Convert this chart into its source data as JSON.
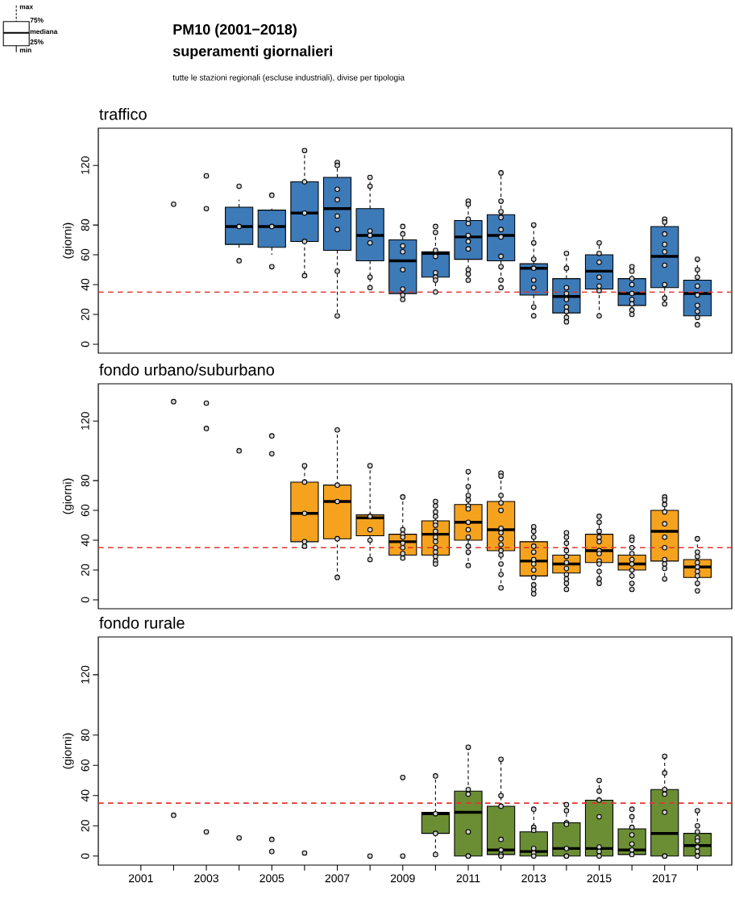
{
  "chart_data": [
    {
      "type": "box",
      "title": "traffico",
      "ylabel": "(giorni)",
      "annotations": [
        "PM10 (2001−2018)",
        "superamenti giornalieri",
        "tutte le stazioni regionali (escluse industriali), divise per tipologia",
        "max",
        "75%",
        "mediana",
        "25%",
        "min"
      ],
      "xlim": [
        1999.7,
        2019.05
      ],
      "ylim": [
        -6,
        145
      ],
      "tick_labels": "y",
      "yticks": [
        0,
        20,
        40,
        60,
        80,
        120
      ],
      "ref_lines": [
        {
          "axis": "y",
          "value": 35,
          "color": "#e3342f",
          "line_style": "dashed"
        }
      ],
      "series": [
        {
          "type": "box",
          "color": "#3d7ab8",
          "x": [
            2004,
            2005,
            2006,
            2007,
            2008,
            2009,
            2010,
            2011,
            2012,
            2013,
            2014,
            2015,
            2016,
            2017,
            2018
          ],
          "boxes": [
            {
              "low": 63,
              "q1": 67,
              "median": 79,
              "q3": 92,
              "high": 97
            },
            {
              "low": 60,
              "q1": 65,
              "median": 79,
              "q3": 90,
              "high": 91
            },
            {
              "low": 47,
              "q1": 69,
              "median": 88,
              "q3": 109,
              "high": 130
            },
            {
              "low": 19,
              "q1": 63,
              "median": 91,
              "q3": 112,
              "high": 122
            },
            {
              "low": 37,
              "q1": 56,
              "median": 73,
              "q3": 91,
              "high": 112
            },
            {
              "low": 30,
              "q1": 34,
              "median": 56,
              "q3": 70,
              "high": 79
            },
            {
              "low": 35,
              "q1": 45,
              "median": 61,
              "q3": 62,
              "high": 80
            },
            {
              "low": 43,
              "q1": 57,
              "median": 72,
              "q3": 83,
              "high": 96
            },
            {
              "low": 38,
              "q1": 56,
              "median": 73,
              "q3": 87,
              "high": 115
            },
            {
              "low": 19,
              "q1": 33,
              "median": 51,
              "q3": 54,
              "high": 80
            },
            {
              "low": 14,
              "q1": 21,
              "median": 32,
              "q3": 44,
              "high": 61
            },
            {
              "low": 19,
              "q1": 37,
              "median": 49,
              "q3": 60,
              "high": 68
            },
            {
              "low": 20,
              "q1": 26,
              "median": 34,
              "q3": 44,
              "high": 52
            },
            {
              "low": 27,
              "q1": 38,
              "median": 59,
              "q3": 79,
              "high": 84
            },
            {
              "low": 12,
              "q1": 19,
              "median": 34,
              "q3": 43,
              "high": 57
            }
          ]
        },
        {
          "type": "scatter",
          "color": "#d4d4d4",
          "x": [
            2002,
            2003,
            2003,
            2004,
            2004,
            2004,
            2005,
            2005,
            2005,
            2006,
            2006,
            2006,
            2006,
            2006,
            2007,
            2007,
            2007,
            2007,
            2007,
            2007,
            2007,
            2007,
            2008,
            2008,
            2008,
            2008,
            2008,
            2008,
            2008,
            2009,
            2009,
            2009,
            2009,
            2009,
            2009,
            2009,
            2009,
            2010,
            2010,
            2010,
            2010,
            2010,
            2010,
            2010,
            2010,
            2011,
            2011,
            2011,
            2011,
            2011,
            2011,
            2011,
            2011,
            2011,
            2011,
            2012,
            2012,
            2012,
            2012,
            2012,
            2012,
            2012,
            2012,
            2012,
            2012,
            2013,
            2013,
            2013,
            2013,
            2013,
            2013,
            2013,
            2013,
            2014,
            2014,
            2014,
            2014,
            2014,
            2014,
            2014,
            2014,
            2014,
            2015,
            2015,
            2015,
            2015,
            2015,
            2015,
            2015,
            2016,
            2016,
            2016,
            2016,
            2016,
            2016,
            2016,
            2016,
            2016,
            2017,
            2017,
            2017,
            2017,
            2017,
            2017,
            2017,
            2017,
            2017,
            2018,
            2018,
            2018,
            2018,
            2018,
            2018,
            2018,
            2018,
            2018
          ],
          "values": [
            94,
            113,
            91,
            106,
            79,
            56,
            100,
            79,
            52,
            130,
            109,
            88,
            69,
            46,
            122,
            120,
            104,
            97,
            86,
            77,
            49,
            19,
            112,
            106,
            76,
            73,
            68,
            45,
            38,
            79,
            74,
            66,
            62,
            50,
            37,
            33,
            30,
            79,
            75,
            63,
            59,
            48,
            45,
            43,
            35,
            96,
            94,
            84,
            81,
            73,
            69,
            64,
            50,
            47,
            43,
            115,
            96,
            89,
            85,
            77,
            72,
            59,
            52,
            43,
            38,
            80,
            68,
            57,
            51,
            43,
            38,
            25,
            19,
            61,
            51,
            38,
            34,
            30,
            25,
            22,
            18,
            15,
            68,
            61,
            55,
            45,
            39,
            36,
            19,
            52,
            49,
            44,
            40,
            34,
            30,
            27,
            23,
            20,
            84,
            82,
            74,
            67,
            62,
            53,
            40,
            31,
            27,
            57,
            50,
            45,
            39,
            33,
            26,
            22,
            18,
            13
          ]
        }
      ]
    },
    {
      "type": "box",
      "title": "fondo urbano/suburbano",
      "ylabel": "(giorni)",
      "xlim": [
        1999.7,
        2019.05
      ],
      "ylim": [
        -6,
        145
      ],
      "tick_labels": "y",
      "yticks": [
        0,
        20,
        40,
        60,
        80,
        120
      ],
      "ref_lines": [
        {
          "axis": "y",
          "value": 35,
          "color": "#e3342f",
          "line_style": "dashed"
        }
      ],
      "series": [
        {
          "type": "box",
          "color": "#f5a21f",
          "x": [
            2006,
            2007,
            2008,
            2009,
            2010,
            2011,
            2012,
            2013,
            2014,
            2015,
            2016,
            2017,
            2018
          ],
          "boxes": [
            {
              "low": 36,
              "q1": 39,
              "median": 58,
              "q3": 79,
              "high": 90
            },
            {
              "low": 15,
              "q1": 41,
              "median": 66,
              "q3": 77,
              "high": 114
            },
            {
              "low": 27,
              "q1": 43,
              "median": 55,
              "q3": 57,
              "high": 90
            },
            {
              "low": 28,
              "q1": 30,
              "median": 39,
              "q3": 44,
              "high": 69
            },
            {
              "low": 24,
              "q1": 30,
              "median": 44,
              "q3": 53,
              "high": 66
            },
            {
              "low": 23,
              "q1": 40,
              "median": 52,
              "q3": 64,
              "high": 86
            },
            {
              "low": 8,
              "q1": 33,
              "median": 47,
              "q3": 66,
              "high": 85
            },
            {
              "low": 4,
              "q1": 16,
              "median": 26,
              "q3": 39,
              "high": 49
            },
            {
              "low": 7,
              "q1": 18,
              "median": 24,
              "q3": 30,
              "high": 45
            },
            {
              "low": 11,
              "q1": 25,
              "median": 33,
              "q3": 44,
              "high": 56
            },
            {
              "low": 7,
              "q1": 20,
              "median": 24,
              "q3": 30,
              "high": 42
            },
            {
              "low": 14,
              "q1": 26,
              "median": 46,
              "q3": 60,
              "high": 69
            },
            {
              "low": 6,
              "q1": 15,
              "median": 22,
              "q3": 27,
              "high": 41
            }
          ]
        },
        {
          "type": "scatter",
          "color": "#d4d4d4",
          "x": [
            2002,
            2003,
            2003,
            2004,
            2005,
            2005,
            2006,
            2006,
            2006,
            2006,
            2006,
            2007,
            2007,
            2007,
            2007,
            2007,
            2008,
            2008,
            2008,
            2008,
            2008,
            2009,
            2009,
            2009,
            2009,
            2009,
            2009,
            2009,
            2009,
            2010,
            2010,
            2010,
            2010,
            2010,
            2010,
            2010,
            2010,
            2010,
            2010,
            2010,
            2010,
            2010,
            2010,
            2011,
            2011,
            2011,
            2011,
            2011,
            2011,
            2011,
            2011,
            2011,
            2011,
            2011,
            2011,
            2012,
            2012,
            2012,
            2012,
            2012,
            2012,
            2012,
            2012,
            2012,
            2012,
            2012,
            2012,
            2012,
            2012,
            2013,
            2013,
            2013,
            2013,
            2013,
            2013,
            2013,
            2013,
            2013,
            2013,
            2013,
            2013,
            2014,
            2014,
            2014,
            2014,
            2014,
            2014,
            2014,
            2014,
            2014,
            2014,
            2014,
            2015,
            2015,
            2015,
            2015,
            2015,
            2015,
            2015,
            2015,
            2015,
            2015,
            2015,
            2015,
            2016,
            2016,
            2016,
            2016,
            2016,
            2016,
            2016,
            2016,
            2016,
            2016,
            2017,
            2017,
            2017,
            2017,
            2017,
            2017,
            2017,
            2017,
            2017,
            2017,
            2017,
            2018,
            2018,
            2018,
            2018,
            2018,
            2018,
            2018,
            2018,
            2018
          ],
          "values": [
            133,
            132,
            115,
            100,
            110,
            98,
            90,
            79,
            58,
            39,
            36,
            114,
            77,
            66,
            41,
            15,
            90,
            56,
            47,
            40,
            27,
            69,
            47,
            44,
            42,
            38,
            35,
            31,
            28,
            66,
            63,
            59,
            56,
            52,
            50,
            46,
            42,
            39,
            35,
            32,
            29,
            26,
            24,
            86,
            76,
            70,
            67,
            63,
            61,
            52,
            47,
            42,
            36,
            32,
            23,
            85,
            83,
            70,
            65,
            60,
            48,
            45,
            41,
            37,
            33,
            30,
            24,
            17,
            8,
            49,
            46,
            42,
            36,
            32,
            27,
            24,
            20,
            15,
            10,
            7,
            4,
            45,
            42,
            38,
            33,
            29,
            25,
            21,
            17,
            14,
            11,
            7,
            56,
            52,
            46,
            42,
            39,
            33,
            31,
            26,
            24,
            19,
            14,
            11,
            42,
            40,
            35,
            31,
            27,
            24,
            20,
            16,
            11,
            7,
            69,
            67,
            64,
            59,
            51,
            42,
            35,
            27,
            24,
            21,
            14,
            41,
            32,
            29,
            25,
            22,
            19,
            16,
            11,
            6
          ]
        }
      ]
    },
    {
      "type": "box",
      "title": "fondo rurale",
      "ylabel": "(giorni)",
      "xlim": [
        1999.7,
        2019.05
      ],
      "ylim": [
        -6,
        145
      ],
      "xticks": [
        2001,
        {
          "value": 2002,
          "label": null
        },
        2003,
        {
          "value": 2004,
          "label": null
        },
        2005,
        {
          "value": 2006,
          "label": null
        },
        2007,
        {
          "value": 2008,
          "label": null
        },
        2009,
        {
          "value": 2010,
          "label": null
        },
        2011,
        {
          "value": 2012,
          "label": null
        },
        2013,
        {
          "value": 2014,
          "label": null
        },
        2015,
        {
          "value": 2016,
          "label": null
        },
        2017,
        {
          "value": 2018,
          "label": null
        }
      ],
      "yticks": [
        0,
        20,
        40,
        60,
        80,
        120
      ],
      "ref_lines": [
        {
          "axis": "y",
          "value": 35,
          "color": "#e3342f",
          "line_style": "dashed"
        }
      ],
      "series": [
        {
          "type": "box",
          "color": "#6b8e35",
          "x": [
            2010,
            2011,
            2012,
            2013,
            2014,
            2015,
            2016,
            2017,
            2018
          ],
          "boxes": [
            {
              "low": 1,
              "q1": 15,
              "median": 28,
              "q3": 29,
              "high": 53
            },
            {
              "low": 0,
              "q1": 0,
              "median": 29,
              "q3": 43,
              "high": 72
            },
            {
              "low": 0,
              "q1": 1,
              "median": 4,
              "q3": 33,
              "high": 64
            },
            {
              "low": 0,
              "q1": 0,
              "median": 3,
              "q3": 16,
              "high": 31
            },
            {
              "low": 0,
              "q1": 0,
              "median": 5,
              "q3": 22,
              "high": 34
            },
            {
              "low": 0,
              "q1": 0,
              "median": 5,
              "q3": 37,
              "high": 50
            },
            {
              "low": 1,
              "q1": 1,
              "median": 4,
              "q3": 18,
              "high": 31
            },
            {
              "low": 0,
              "q1": 0,
              "median": 15,
              "q3": 44,
              "high": 66
            },
            {
              "low": 0,
              "q1": 0,
              "median": 7,
              "q3": 15,
              "high": 30
            }
          ]
        },
        {
          "type": "scatter",
          "color": "#d4d4d4",
          "x": [
            2002,
            2003,
            2004,
            2005,
            2005,
            2006,
            2008,
            2009,
            2009,
            2010,
            2010,
            2010,
            2010,
            2011,
            2011,
            2011,
            2011,
            2011,
            2011,
            2012,
            2012,
            2012,
            2012,
            2012,
            2012,
            2012,
            2013,
            2013,
            2013,
            2013,
            2013,
            2013,
            2014,
            2014,
            2014,
            2014,
            2014,
            2014,
            2014,
            2015,
            2015,
            2015,
            2015,
            2015,
            2015,
            2015,
            2016,
            2016,
            2016,
            2016,
            2016,
            2016,
            2016,
            2017,
            2017,
            2017,
            2017,
            2017,
            2017,
            2017,
            2018,
            2018,
            2018,
            2018,
            2018,
            2018,
            2018,
            2018
          ],
          "values": [
            27,
            16,
            12,
            11,
            3,
            2,
            0,
            52,
            0,
            53,
            28,
            15,
            1,
            72,
            44,
            41,
            16,
            0,
            0,
            64,
            40,
            33,
            11,
            4,
            1,
            0,
            31,
            19,
            17,
            5,
            2,
            0,
            34,
            30,
            22,
            21,
            5,
            0,
            0,
            50,
            43,
            37,
            26,
            6,
            3,
            0,
            31,
            26,
            19,
            14,
            8,
            4,
            1,
            66,
            55,
            44,
            41,
            29,
            0,
            0,
            30,
            20,
            16,
            12,
            10,
            6,
            3,
            0
          ]
        }
      ]
    }
  ]
}
